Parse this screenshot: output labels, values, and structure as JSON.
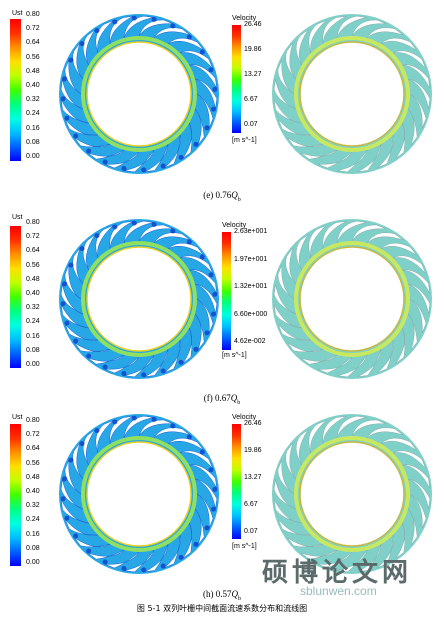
{
  "panels": [
    {
      "caption": "(e) 0.76",
      "caption_q": "Q",
      "caption_sub": "b",
      "ust": {
        "title": "Ust",
        "ticks": [
          "0.80",
          "0.72",
          "0.64",
          "0.56",
          "0.48",
          "0.40",
          "0.32",
          "0.24",
          "0.16",
          "0.08",
          "0.00"
        ]
      },
      "velocity": {
        "title": "Velocity",
        "ticks": [
          "26.46",
          "19.86",
          "13.27",
          "6.67",
          "0.07"
        ],
        "unit": "[m s^-1]"
      }
    },
    {
      "caption": "(f) 0.67",
      "caption_q": "Q",
      "caption_sub": "b",
      "ust": {
        "title": "Ust",
        "ticks": [
          "0.80",
          "0.72",
          "0.64",
          "0.56",
          "0.48",
          "0.40",
          "0.32",
          "0.24",
          "0.16",
          "0.08",
          "0.00"
        ]
      },
      "velocity": {
        "title": "Velocity",
        "ticks": [
          "2.63e+001",
          "1.97e+001",
          "1.32e+001",
          "6.60e+000",
          "4.62e-002"
        ],
        "unit": "[m s^-1]"
      }
    },
    {
      "caption": "(h) 0.57",
      "caption_q": "Q",
      "caption_sub": "b",
      "ust": {
        "title": "Ust",
        "ticks": [
          "0.80",
          "0.72",
          "0.64",
          "0.56",
          "0.48",
          "0.40",
          "0.32",
          "0.24",
          "0.16",
          "0.08",
          "0.00"
        ]
      },
      "velocity": {
        "title": "Velocity",
        "ticks": [
          "26.46",
          "19.86",
          "13.27",
          "6.67",
          "0.07"
        ],
        "unit": "[m s^-1]"
      }
    }
  ],
  "figure_caption": "图  5-1  双列叶栅中间截面流速系数分布和流线图",
  "watermark": {
    "text": "硕博论文网",
    "url": "sblunwen.com"
  },
  "colors": {
    "rainbow": [
      "#0000ff",
      "#0060ff",
      "#00c0ff",
      "#00ffe0",
      "#00ff80",
      "#40ff00",
      "#c0ff00",
      "#ffe000",
      "#ff9000",
      "#ff3000",
      "#ff0000"
    ]
  }
}
